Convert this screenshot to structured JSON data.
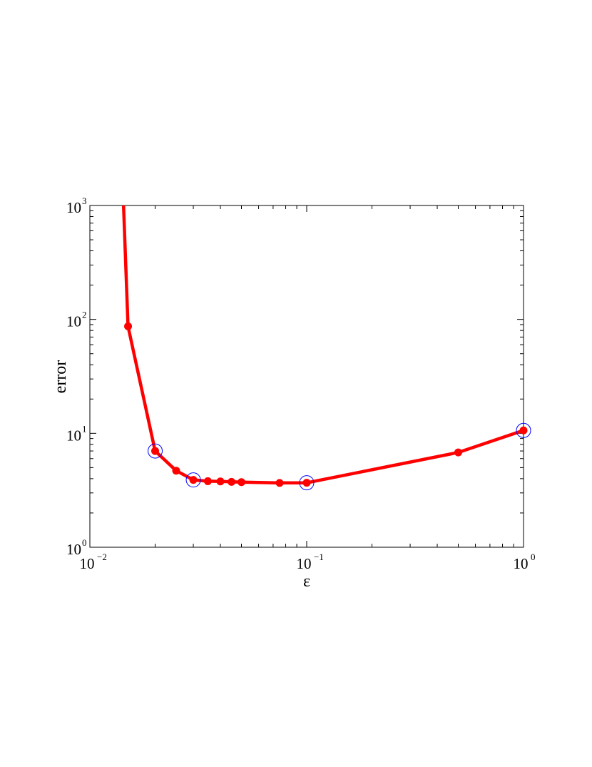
{
  "chart_data": {
    "type": "line",
    "title": "",
    "xlabel": "ε",
    "ylabel": "error",
    "xscale": "log",
    "yscale": "log",
    "xlim": [
      0.01,
      1
    ],
    "ylim": [
      1,
      1000
    ],
    "grid": false,
    "x_ticks": [
      {
        "base": "10",
        "exp": "−2",
        "value": 0.01
      },
      {
        "base": "10",
        "exp": "−1",
        "value": 0.1
      },
      {
        "base": "10",
        "exp": "0",
        "value": 1
      }
    ],
    "y_ticks": [
      {
        "base": "10",
        "exp": "0",
        "value": 1
      },
      {
        "base": "10",
        "exp": "1",
        "value": 10
      },
      {
        "base": "10",
        "exp": "2",
        "value": 100
      },
      {
        "base": "10",
        "exp": "3",
        "value": 1000
      }
    ],
    "series": [
      {
        "color": "#ff0000",
        "line_start": {
          "x": 0.0143,
          "y": 1000
        },
        "points": [
          {
            "x": 0.015,
            "y": 87
          },
          {
            "x": 0.02,
            "y": 7.0
          },
          {
            "x": 0.025,
            "y": 4.7
          },
          {
            "x": 0.03,
            "y": 3.9
          },
          {
            "x": 0.035,
            "y": 3.8
          },
          {
            "x": 0.04,
            "y": 3.78
          },
          {
            "x": 0.045,
            "y": 3.75
          },
          {
            "x": 0.05,
            "y": 3.73
          },
          {
            "x": 0.075,
            "y": 3.67
          },
          {
            "x": 0.1,
            "y": 3.68
          },
          {
            "x": 0.5,
            "y": 6.8
          },
          {
            "x": 1.0,
            "y": 10.6
          }
        ]
      }
    ],
    "highlighted": {
      "color": "#0000ff",
      "x": [
        0.02,
        0.03,
        0.1,
        1.0
      ]
    }
  }
}
